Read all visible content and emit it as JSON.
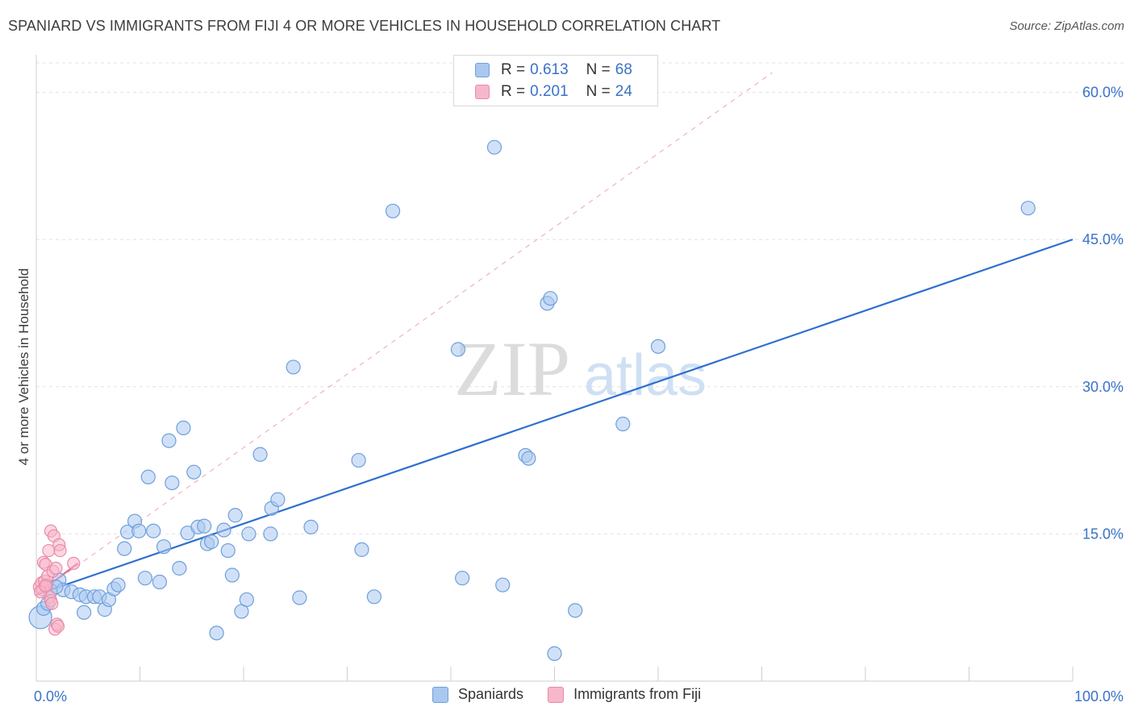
{
  "title": "SPANIARD VS IMMIGRANTS FROM FIJI 4 OR MORE VEHICLES IN HOUSEHOLD CORRELATION CHART",
  "source": "Source: ZipAtlas.com",
  "watermark": {
    "zip": "ZIP",
    "atlas": "atlas"
  },
  "legend": {
    "r_label": "R =",
    "n_label": "N =",
    "series1": {
      "r": "0.613",
      "n": "68"
    },
    "series2": {
      "r": "0.201",
      "n": "24"
    }
  },
  "colors": {
    "series1_fill": "#a9c8f0",
    "series1_stroke": "#6f9fdc",
    "series1_line": "#2f6fd0",
    "series2_fill": "#f7b7cb",
    "series2_stroke": "#e98aa8",
    "series2_line": "#e5678f",
    "axis_text": "#3a72c8"
  },
  "chart_data": {
    "type": "scatter",
    "title": "SPANIARD VS IMMIGRANTS FROM FIJI 4 OR MORE VEHICLES IN HOUSEHOLD CORRELATION CHART",
    "xlabel": "",
    "ylabel": "4 or more Vehicles in Household",
    "xlim": [
      0,
      100
    ],
    "ylim": [
      0,
      63
    ],
    "x_tick_labels": [
      {
        "value": 0,
        "label": "0.0%"
      },
      {
        "value": 100,
        "label": "100.0%"
      }
    ],
    "y_ticks": [
      {
        "value": 15,
        "label": "15.0%"
      },
      {
        "value": 30,
        "label": "30.0%"
      },
      {
        "value": 45,
        "label": "45.0%"
      },
      {
        "value": 60,
        "label": "60.0%"
      }
    ],
    "x_minor_ticks": [
      0,
      10,
      20,
      30,
      40,
      50,
      60,
      70,
      80,
      90,
      100
    ],
    "series": [
      {
        "name": "Spaniards",
        "points": [
          [
            0.4,
            6.5
          ],
          [
            0.7,
            7.4
          ],
          [
            1.1,
            7.9
          ],
          [
            1.4,
            9.2
          ],
          [
            2.2,
            10.3
          ],
          [
            2.6,
            9.3
          ],
          [
            1.9,
            9.6
          ],
          [
            3.4,
            9.1
          ],
          [
            4.2,
            8.8
          ],
          [
            4.8,
            8.6
          ],
          [
            5.6,
            8.6
          ],
          [
            6.1,
            8.6
          ],
          [
            6.6,
            7.3
          ],
          [
            7.0,
            8.3
          ],
          [
            7.5,
            9.4
          ],
          [
            7.9,
            9.8
          ],
          [
            4.6,
            7.0
          ],
          [
            8.5,
            13.5
          ],
          [
            8.8,
            15.2
          ],
          [
            9.5,
            16.3
          ],
          [
            9.9,
            15.3
          ],
          [
            10.5,
            10.5
          ],
          [
            10.8,
            20.8
          ],
          [
            11.3,
            15.3
          ],
          [
            11.9,
            10.1
          ],
          [
            12.3,
            13.7
          ],
          [
            12.8,
            24.5
          ],
          [
            13.1,
            20.2
          ],
          [
            13.8,
            11.5
          ],
          [
            14.2,
            25.8
          ],
          [
            14.6,
            15.1
          ],
          [
            15.2,
            21.3
          ],
          [
            15.6,
            15.7
          ],
          [
            16.2,
            15.8
          ],
          [
            16.5,
            14.0
          ],
          [
            16.9,
            14.2
          ],
          [
            17.4,
            4.9
          ],
          [
            18.1,
            15.4
          ],
          [
            18.5,
            13.3
          ],
          [
            18.9,
            10.8
          ],
          [
            19.2,
            16.9
          ],
          [
            19.8,
            7.1
          ],
          [
            20.3,
            8.3
          ],
          [
            20.5,
            15.0
          ],
          [
            21.6,
            23.1
          ],
          [
            22.6,
            15.0
          ],
          [
            22.7,
            17.6
          ],
          [
            23.3,
            18.5
          ],
          [
            24.8,
            32.0
          ],
          [
            25.4,
            8.5
          ],
          [
            26.5,
            15.7
          ],
          [
            31.1,
            22.5
          ],
          [
            31.4,
            13.4
          ],
          [
            32.6,
            8.6
          ],
          [
            34.4,
            47.9
          ],
          [
            40.7,
            33.8
          ],
          [
            41.1,
            10.5
          ],
          [
            44.2,
            54.4
          ],
          [
            45.0,
            9.8
          ],
          [
            47.2,
            23.0
          ],
          [
            47.5,
            22.7
          ],
          [
            49.3,
            38.5
          ],
          [
            49.6,
            39.0
          ],
          [
            50.0,
            2.8
          ],
          [
            52.0,
            7.2
          ],
          [
            56.6,
            26.2
          ],
          [
            60.0,
            34.1
          ],
          [
            95.7,
            48.2
          ]
        ]
      },
      {
        "name": "Immigrants from Fiji",
        "points": [
          [
            0.3,
            9.6
          ],
          [
            0.5,
            10.0
          ],
          [
            0.6,
            9.3
          ],
          [
            0.7,
            12.1
          ],
          [
            0.8,
            10.2
          ],
          [
            0.9,
            11.9
          ],
          [
            1.0,
            9.8
          ],
          [
            1.1,
            10.7
          ],
          [
            1.2,
            13.3
          ],
          [
            1.3,
            8.6
          ],
          [
            1.4,
            8.2
          ],
          [
            1.4,
            15.3
          ],
          [
            1.5,
            7.9
          ],
          [
            1.6,
            11.2
          ],
          [
            1.7,
            14.8
          ],
          [
            1.8,
            5.3
          ],
          [
            1.9,
            11.5
          ],
          [
            2.0,
            5.8
          ],
          [
            2.1,
            5.6
          ],
          [
            2.2,
            13.9
          ],
          [
            2.3,
            13.3
          ],
          [
            3.6,
            12.0
          ],
          [
            0.4,
            9.1
          ],
          [
            0.9,
            9.7
          ]
        ]
      }
    ],
    "regression_lines": [
      {
        "series": "Spaniards",
        "x": [
          0,
          100
        ],
        "y": [
          8.8,
          45.0
        ],
        "style": "solid"
      },
      {
        "series": "Immigrants from Fiji",
        "x": [
          0,
          4
        ],
        "y": [
          8.8,
          12.0
        ],
        "style": "solid"
      },
      {
        "series": "Immigrants from Fiji",
        "x": [
          0,
          71
        ],
        "y": [
          8.8,
          62.0
        ],
        "style": "dashed"
      }
    ],
    "legend": {
      "position": "top-center",
      "entries": [
        "Spaniards",
        "Immigrants from Fiji"
      ]
    }
  }
}
